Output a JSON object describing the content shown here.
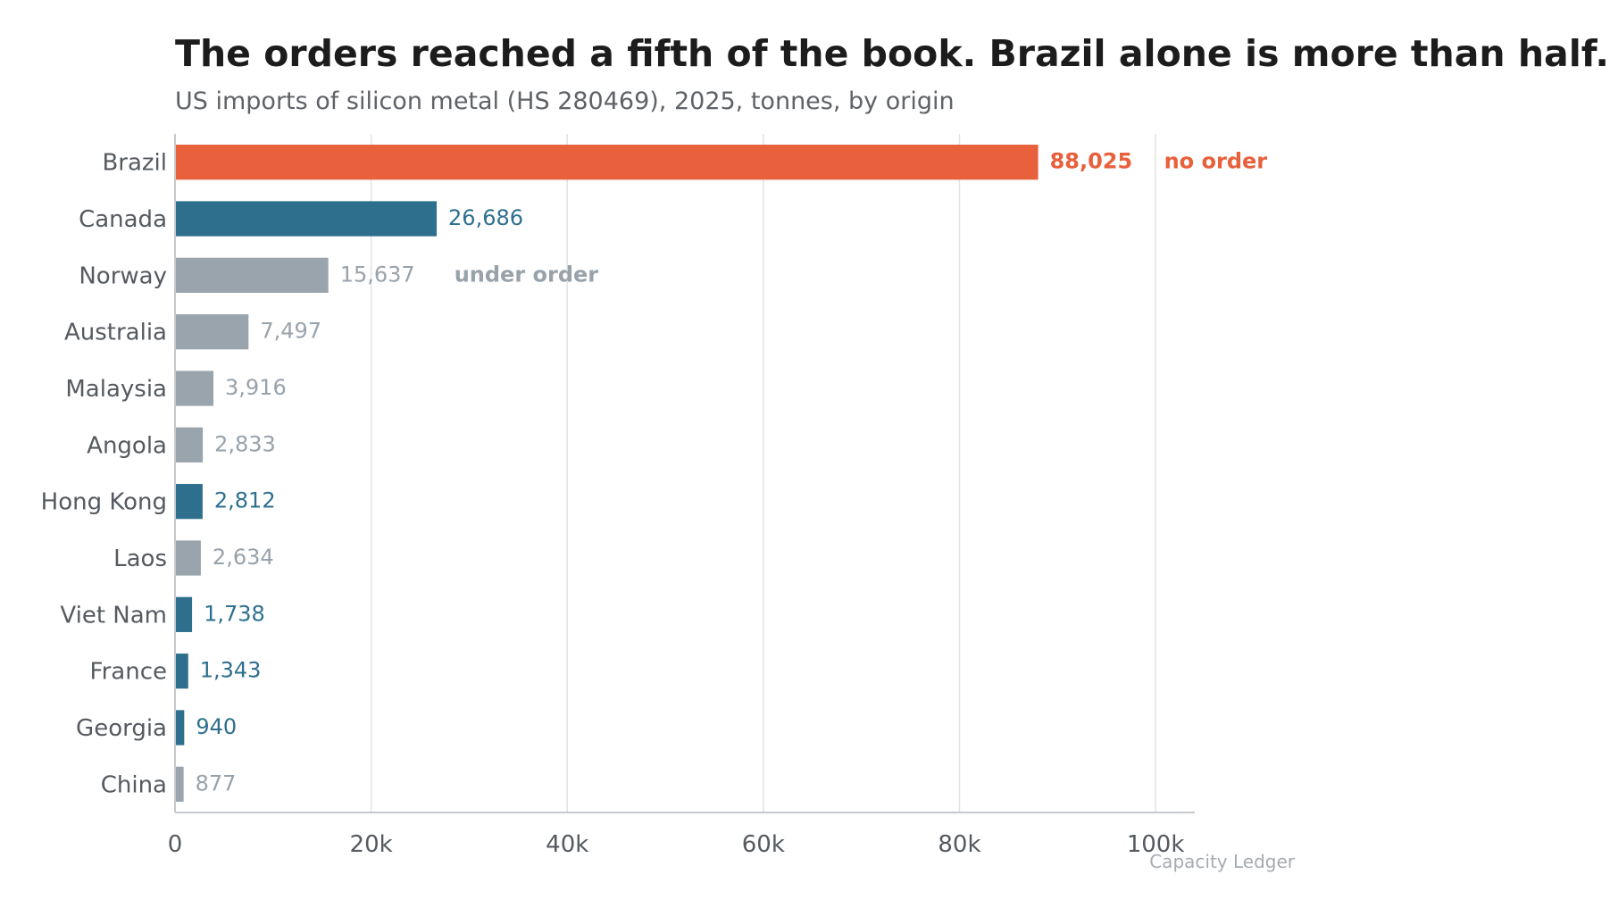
{
  "header": {
    "title": "The orders reached a fifth of the book. Brazil alone is more than half.",
    "subtitle": "US imports of silicon metal (HS 280469), 2025, tonnes, by origin"
  },
  "source": "Capacity Ledger",
  "colors": {
    "highlight": "#e8603c",
    "ordered": "#2e6f8e",
    "other": "#9aa4ad",
    "other_label": "#98a2ab",
    "grid": "#e3e3e3",
    "axis": "#c5c9ce"
  },
  "chart_data": {
    "type": "bar",
    "orientation": "horizontal",
    "title": "The orders reached a fifth of the book. Brazil alone is more than half.",
    "subtitle": "US imports of silicon metal (HS 280469), 2025, tonnes, by origin",
    "categories": [
      "Brazil",
      "Canada",
      "Norway",
      "Australia",
      "Malaysia",
      "Angola",
      "Hong Kong",
      "Laos",
      "Viet Nam",
      "France",
      "Georgia",
      "China"
    ],
    "values": [
      88025,
      26686,
      15637,
      7497,
      3916,
      2833,
      2812,
      2634,
      1738,
      1343,
      940,
      877
    ],
    "value_labels": [
      "88,025",
      "26,686",
      "15,637",
      "7,497",
      "3,916",
      "2,833",
      "2,812",
      "2,634",
      "1,738",
      "1,343",
      "940",
      "877"
    ],
    "bar_group": [
      "highlight",
      "ordered",
      "other",
      "other",
      "other",
      "other",
      "ordered",
      "other",
      "ordered",
      "ordered",
      "ordered",
      "other"
    ],
    "annotations": [
      {
        "category": "Brazil",
        "text": "no order",
        "group": "highlight"
      },
      {
        "category": "Norway",
        "text": "under order",
        "group": "other"
      }
    ],
    "xlim": [
      0,
      104000
    ],
    "xticks": [
      0,
      20000,
      40000,
      60000,
      80000,
      100000
    ],
    "xtick_labels": [
      "0",
      "20k",
      "40k",
      "60k",
      "80k",
      "100k"
    ],
    "xlabel": "",
    "ylabel": "",
    "grid": true,
    "legend": "none"
  }
}
